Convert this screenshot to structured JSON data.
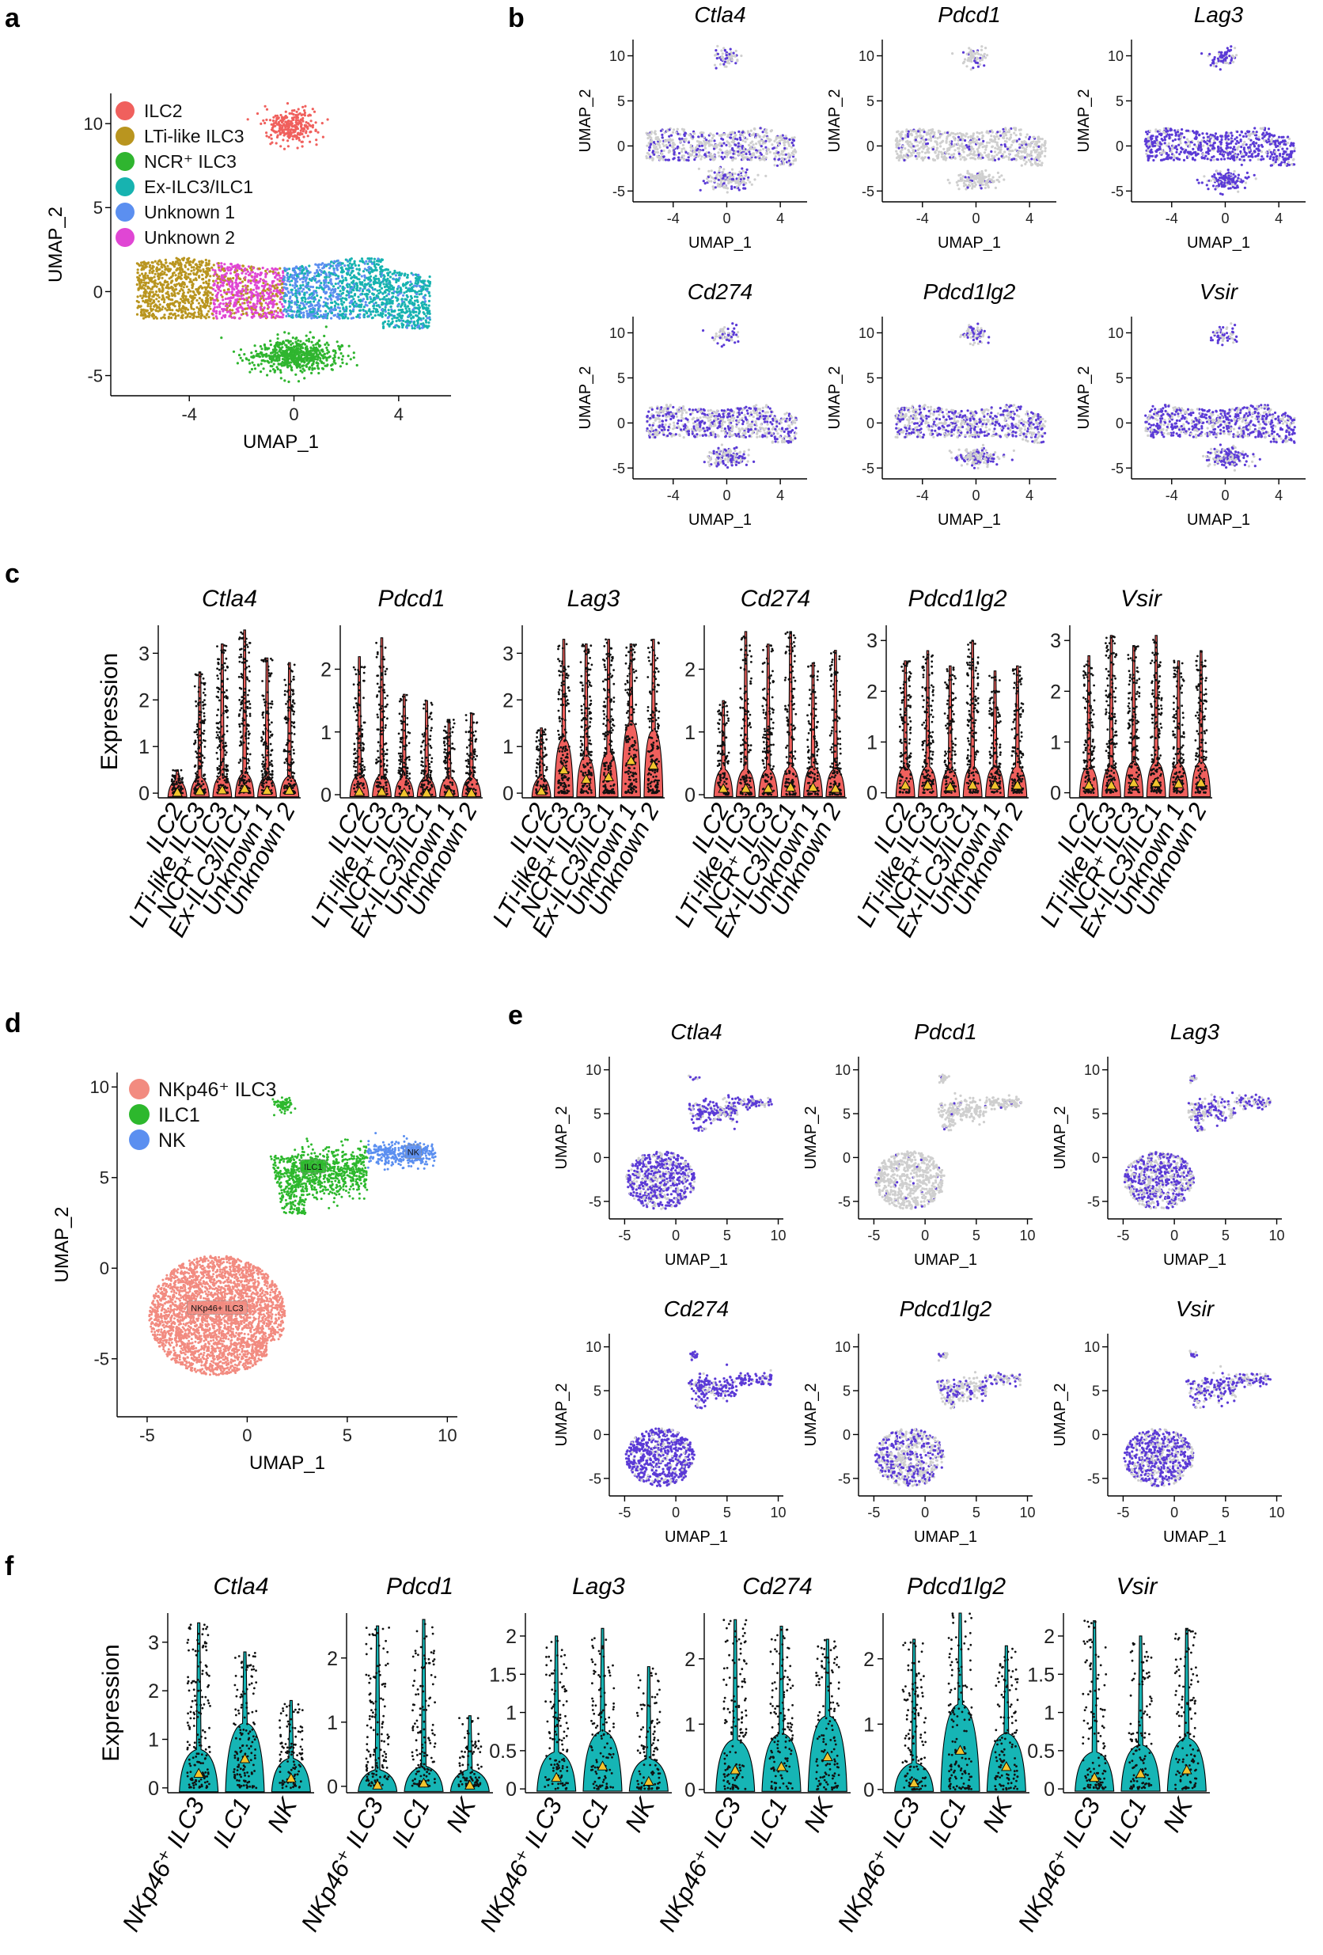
{
  "panel_labels": {
    "a": "a",
    "b": "b",
    "c": "c",
    "d": "d",
    "e": "e",
    "f": "f"
  },
  "chart_data": [
    {
      "panel": "a",
      "type": "scatter",
      "xlabel": "UMAP_1",
      "ylabel": "UMAP_2",
      "xticks": [
        -4,
        0,
        4
      ],
      "yticks": [
        -5,
        0,
        5,
        10
      ],
      "xlim": [
        -7,
        6
      ],
      "ylim": [
        -6.2,
        11.8
      ],
      "legend": {
        "position": "top-left",
        "items": [
          {
            "label": "ILC2",
            "color": "#f0605d"
          },
          {
            "label": "LTi-like ILC3",
            "color": "#b9951f"
          },
          {
            "label": "NCR⁺ ILC3",
            "color": "#2fb52f"
          },
          {
            "label": "Ex-ILC3/ILC1",
            "color": "#17b3b0"
          },
          {
            "label": "Unknown 1",
            "color": "#5b8ff0"
          },
          {
            "label": "Unknown 2",
            "color": "#e046d4"
          }
        ]
      },
      "clusters": [
        {
          "cluster": "ILC2",
          "center": [
            -0.1,
            9.8
          ],
          "spread": [
            0.55,
            0.55
          ]
        },
        {
          "cluster": "LTi-like ILC3",
          "center": [
            -4.3,
            0.0
          ],
          "spread": [
            1.1,
            0.75
          ]
        },
        {
          "cluster": "NCR⁺ ILC3",
          "center": [
            0.1,
            -3.8
          ],
          "spread": [
            0.85,
            0.55
          ]
        },
        {
          "cluster": "Ex-ILC3/ILC1",
          "center": [
            3.2,
            -0.2
          ],
          "spread": [
            1.2,
            0.85
          ]
        },
        {
          "cluster": "Unknown 1",
          "center": [
            1.0,
            0.0
          ],
          "spread": [
            1.3,
            1.0
          ]
        },
        {
          "cluster": "Unknown 2",
          "center": [
            -1.2,
            0.6
          ],
          "spread": [
            0.9,
            0.65
          ]
        }
      ]
    },
    {
      "panel": "b",
      "type": "scatter",
      "xlabel": "UMAP_1",
      "ylabel": "UMAP_2",
      "xticks": [
        -4,
        0,
        4
      ],
      "yticks": [
        -5,
        0,
        5,
        10
      ],
      "xlim": [
        -7,
        6
      ],
      "ylim": [
        -6.2,
        11.8
      ],
      "low_color": "#cfcfcf",
      "high_color": "#5b3ad6",
      "plots": [
        {
          "gene": "Ctla4",
          "density": 0.35
        },
        {
          "gene": "Pdcd1",
          "density": 0.12
        },
        {
          "gene": "Lag3",
          "density": 0.75
        },
        {
          "gene": "Cd274",
          "density": 0.45
        },
        {
          "gene": "Pdcd1lg2",
          "density": 0.45
        },
        {
          "gene": "Vsir",
          "density": 0.6
        }
      ]
    },
    {
      "panel": "c",
      "type": "violin",
      "ylabel": "Expression",
      "violin_color": "#f0605d",
      "categories": [
        "ILC2",
        "LTi-like ILC3",
        "NCR⁺ ILC3",
        "Ex-ILC3/ILC1",
        "Unknown 1",
        "Unknown 2"
      ],
      "plots": [
        {
          "gene": "Ctla4",
          "yticks": [
            0,
            1,
            2,
            3
          ],
          "ylim": [
            -0.1,
            3.6
          ],
          "max": [
            0.5,
            2.6,
            3.2,
            3.5,
            2.9,
            2.8
          ],
          "mean": [
            0.02,
            0.05,
            0.07,
            0.1,
            0.06,
            0.06
          ]
        },
        {
          "gene": "Pdcd1",
          "yticks": [
            0,
            1,
            2
          ],
          "ylim": [
            -0.05,
            2.7
          ],
          "max": [
            2.2,
            2.5,
            1.6,
            1.5,
            1.2,
            1.3
          ],
          "mean": [
            0.05,
            0.05,
            0.03,
            0.03,
            0.03,
            0.03
          ]
        },
        {
          "gene": "Lag3",
          "yticks": [
            0,
            1,
            2,
            3
          ],
          "ylim": [
            -0.1,
            3.6
          ],
          "max": [
            1.4,
            3.3,
            3.2,
            3.3,
            3.2,
            3.3
          ],
          "mean": [
            0.05,
            0.5,
            0.3,
            0.35,
            0.7,
            0.6
          ]
        },
        {
          "gene": "Cd274",
          "yticks": [
            0,
            1,
            2
          ],
          "ylim": [
            -0.05,
            2.7
          ],
          "max": [
            1.5,
            2.6,
            2.4,
            2.6,
            2.1,
            2.3
          ],
          "mean": [
            0.1,
            0.1,
            0.1,
            0.12,
            0.12,
            0.1
          ]
        },
        {
          "gene": "Pdcd1lg2",
          "yticks": [
            0,
            1,
            2,
            3
          ],
          "ylim": [
            -0.1,
            3.3
          ],
          "max": [
            2.6,
            2.8,
            2.5,
            3.0,
            2.4,
            2.5
          ],
          "mean": [
            0.15,
            0.15,
            0.12,
            0.15,
            0.15,
            0.15
          ]
        },
        {
          "gene": "Vsir",
          "yticks": [
            0,
            1,
            2,
            3
          ],
          "ylim": [
            -0.1,
            3.3
          ],
          "max": [
            2.7,
            3.1,
            2.9,
            3.1,
            2.6,
            2.8
          ],
          "mean": [
            0.15,
            0.15,
            0.2,
            0.2,
            0.18,
            0.2
          ]
        }
      ]
    },
    {
      "panel": "d",
      "type": "scatter",
      "xlabel": "UMAP_1",
      "ylabel": "UMAP_2",
      "xticks": [
        -5,
        0,
        5,
        10
      ],
      "yticks": [
        -5,
        0,
        5,
        10
      ],
      "xlim": [
        -6.5,
        10.5
      ],
      "ylim": [
        -8.2,
        10.8
      ],
      "legend": {
        "position": "top-left",
        "items": [
          {
            "label": "NKp46⁺ ILC3",
            "color": "#f28b80"
          },
          {
            "label": "ILC1",
            "color": "#2db82d"
          },
          {
            "label": "NK",
            "color": "#5b8ff0"
          }
        ]
      },
      "cluster_labels": [
        "NKp46+ ILC3",
        "ILC1",
        "NK"
      ],
      "clusters": [
        {
          "cluster": "NKp46⁺ ILC3",
          "center": [
            -1.5,
            -2.5
          ],
          "spread": [
            2.8,
            2.6
          ]
        },
        {
          "cluster": "ILC1",
          "center": [
            3.5,
            6.0
          ],
          "spread": [
            1.4,
            0.8
          ]
        },
        {
          "cluster": "NK",
          "center": [
            7.8,
            6.4
          ],
          "spread": [
            1.1,
            0.35
          ]
        }
      ]
    },
    {
      "panel": "e",
      "type": "scatter",
      "xlabel": "UMAP_1",
      "ylabel": "UMAP_2",
      "xticks": [
        -5,
        0,
        5,
        10
      ],
      "yticks": [
        -5,
        0,
        5,
        10
      ],
      "xlim": [
        -6.5,
        10.5
      ],
      "ylim": [
        -7.0,
        11.5
      ],
      "low_color": "#cfcfcf",
      "high_color": "#5b3ad6",
      "plots": [
        {
          "gene": "Ctla4",
          "density": 0.7
        },
        {
          "gene": "Pdcd1",
          "density": 0.04
        },
        {
          "gene": "Lag3",
          "density": 0.55
        },
        {
          "gene": "Cd274",
          "density": 0.85
        },
        {
          "gene": "Pdcd1lg2",
          "density": 0.4
        },
        {
          "gene": "Vsir",
          "density": 0.6
        }
      ]
    },
    {
      "panel": "f",
      "type": "violin",
      "ylabel": "Expression",
      "violin_color": "#16b5b5",
      "categories": [
        "NKp46⁺ ILC3",
        "ILC1",
        "NK"
      ],
      "plots": [
        {
          "gene": "Ctla4",
          "yticks": [
            0,
            1,
            2,
            3
          ],
          "yticklabels": [
            "0",
            "1",
            "2",
            "3"
          ],
          "ylim": [
            -0.1,
            3.6
          ],
          "max": [
            3.4,
            2.8,
            1.8
          ],
          "mean": [
            0.3,
            0.6,
            0.2
          ]
        },
        {
          "gene": "Pdcd1",
          "yticks": [
            0,
            1,
            2
          ],
          "yticklabels": [
            "0",
            "1",
            "2"
          ],
          "ylim": [
            -0.1,
            2.7
          ],
          "max": [
            2.5,
            2.6,
            1.1
          ],
          "mean": [
            0.02,
            0.05,
            0.02
          ]
        },
        {
          "gene": "Lag3",
          "yticks": [
            0,
            0.5,
            1,
            1.5,
            2
          ],
          "yticklabels": [
            "0",
            "0.5",
            "1",
            "1.5",
            "2"
          ],
          "ylim": [
            -0.05,
            2.3
          ],
          "max": [
            2.0,
            2.1,
            1.6
          ],
          "mean": [
            0.15,
            0.3,
            0.1
          ]
        },
        {
          "gene": "Cd274",
          "yticks": [
            0,
            1,
            2
          ],
          "yticklabels": [
            "0",
            "1",
            "2"
          ],
          "ylim": [
            -0.05,
            2.7
          ],
          "max": [
            2.6,
            2.5,
            2.3
          ],
          "mean": [
            0.3,
            0.35,
            0.5
          ]
        },
        {
          "gene": "Pdcd1lg2",
          "yticks": [
            0,
            1,
            2
          ],
          "yticklabels": [
            "0",
            "1",
            "2"
          ],
          "ylim": [
            -0.05,
            2.7
          ],
          "max": [
            2.3,
            2.7,
            2.2
          ],
          "mean": [
            0.1,
            0.6,
            0.35
          ]
        },
        {
          "gene": "Vsir",
          "yticks": [
            0,
            0.5,
            1,
            1.5,
            2
          ],
          "yticklabels": [
            "0",
            "0.5",
            "1",
            "1.5",
            "2"
          ],
          "ylim": [
            -0.05,
            2.3
          ],
          "max": [
            2.2,
            2.0,
            2.1
          ],
          "mean": [
            0.15,
            0.2,
            0.25
          ]
        }
      ]
    }
  ]
}
